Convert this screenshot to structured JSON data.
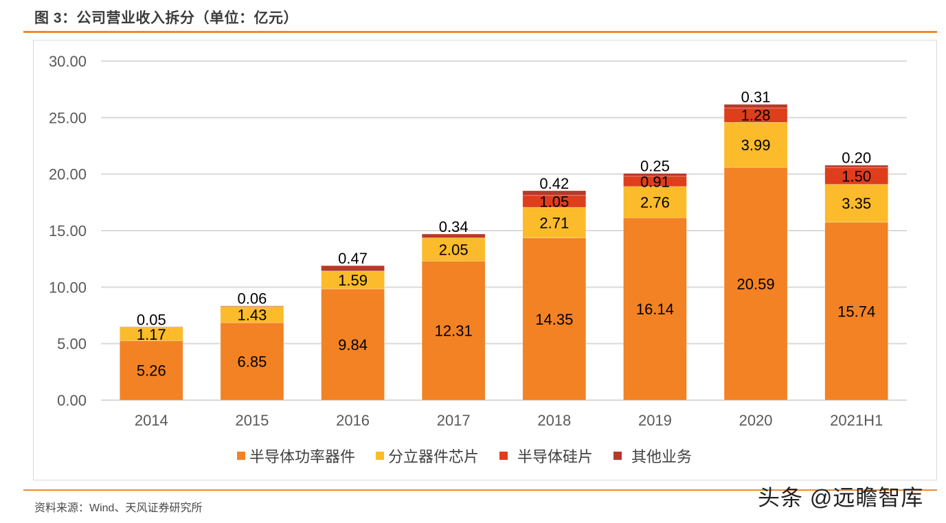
{
  "header": {
    "figure_title": "图 3：公司营业收入拆分（单位：亿元）"
  },
  "footer": {
    "source": "资料来源：Wind、天风证券研究所",
    "watermark": "头条 @远瞻智库"
  },
  "colors": {
    "半导体功率器件": "#f28224",
    "分立器件芯片": "#fbbb2a",
    "半导体硅片": "#de3e1c",
    "其他业务": "#b53a2b",
    "accent_rule": "#f0892b",
    "gridline": "#d9d9d9",
    "tick_text": "#595959"
  },
  "chart_data": {
    "type": "bar",
    "stacked": true,
    "title": "",
    "xlabel": "",
    "ylabel": "",
    "ylim": [
      0,
      30
    ],
    "yticks": [
      "0.00",
      "5.00",
      "10.00",
      "15.00",
      "20.00",
      "25.00",
      "30.00"
    ],
    "grid": true,
    "legend_position": "bottom",
    "categories": [
      "2014",
      "2015",
      "2016",
      "2017",
      "2018",
      "2019",
      "2020",
      "2021H1"
    ],
    "series": [
      {
        "name": "半导体功率器件",
        "values": [
          5.26,
          6.85,
          9.84,
          12.31,
          14.35,
          16.14,
          20.59,
          15.74
        ]
      },
      {
        "name": "分立器件芯片",
        "values": [
          1.17,
          1.43,
          1.59,
          2.05,
          2.71,
          2.76,
          3.99,
          3.35
        ]
      },
      {
        "name": "半导体硅片",
        "values": [
          null,
          null,
          null,
          null,
          1.05,
          0.91,
          1.28,
          1.5
        ]
      },
      {
        "name": "其他业务",
        "values": [
          0.05,
          0.06,
          0.47,
          0.34,
          0.42,
          0.25,
          0.31,
          0.2
        ]
      }
    ]
  }
}
